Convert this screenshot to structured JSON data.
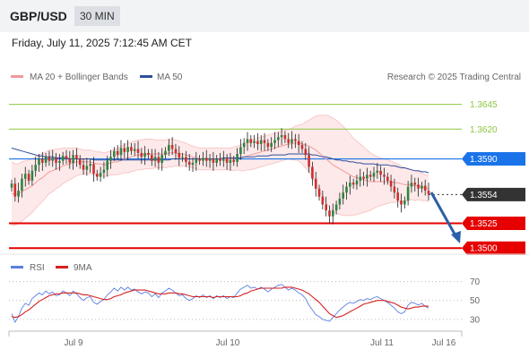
{
  "header": {
    "pair": "GBP/USD",
    "timeframe": "30 MIN",
    "datetime": "Friday, July 11, 2025 7:12:45 AM CET"
  },
  "legend": {
    "bb": "MA 20 + Bollinger Bands",
    "ma50": "MA 50",
    "rsi": "RSI",
    "rsi_ma": "9MA"
  },
  "credit": "Research © 2025 Trading Central",
  "colors": {
    "bb_line": "#f29a9a",
    "bb_fill": "#fde3e3",
    "ma50": "#2f4f9f",
    "resistance": "#8dc63f",
    "support": "#e60000",
    "tag_blue": "#1a73e8",
    "tag_dark": "#333333",
    "candle_up": "#2e8540",
    "candle_down": "#cc2f2f",
    "rsi": "#5b7fe0",
    "rsi_ma": "#d62020",
    "arrow": "#2b5fa8"
  },
  "chart_data": [
    {
      "type": "candlestick",
      "title": "",
      "xlabel": "",
      "ylabel": "",
      "x_ticks": [
        "Jul 9",
        "Jul 10",
        "Jul 11",
        "Jul 16"
      ],
      "ylim": [
        1.3493,
        1.366
      ],
      "levels": [
        {
          "value": 1.3645,
          "label": "1.3645",
          "kind": "resistance"
        },
        {
          "value": 1.362,
          "label": "1.3620",
          "kind": "resistance"
        },
        {
          "value": 1.359,
          "label": "1.3590",
          "kind": "pivot"
        },
        {
          "value": 1.3554,
          "label": "1.3554",
          "kind": "current"
        },
        {
          "value": 1.3525,
          "label": "1.3525",
          "kind": "support"
        },
        {
          "value": 1.35,
          "label": "1.3500",
          "kind": "support"
        }
      ],
      "close": [
        1.3565,
        1.3552,
        1.3558,
        1.357,
        1.3575,
        1.3568,
        1.3578,
        1.3584,
        1.359,
        1.3586,
        1.3592,
        1.3588,
        1.3591,
        1.3586,
        1.3588,
        1.3593,
        1.359,
        1.3586,
        1.3594,
        1.359,
        1.3584,
        1.3579,
        1.3583,
        1.3585,
        1.3575,
        1.3572,
        1.3576,
        1.3579,
        1.3588,
        1.3592,
        1.3598,
        1.3594,
        1.3601,
        1.3597,
        1.3602,
        1.3598,
        1.36,
        1.3596,
        1.3592,
        1.3596,
        1.3594,
        1.3588,
        1.3592,
        1.3586,
        1.3594,
        1.3598,
        1.3604,
        1.36,
        1.3596,
        1.3591,
        1.3592,
        1.3587,
        1.3584,
        1.3586,
        1.359,
        1.3588,
        1.3591,
        1.3588,
        1.359,
        1.3586,
        1.359,
        1.3588,
        1.359,
        1.3586,
        1.3589,
        1.3587,
        1.3595,
        1.3602,
        1.3606,
        1.361,
        1.3606,
        1.3608,
        1.3605,
        1.3609,
        1.3606,
        1.3602,
        1.3606,
        1.3609,
        1.3612,
        1.3614,
        1.361,
        1.3606,
        1.361,
        1.3608,
        1.3604,
        1.36,
        1.3594,
        1.3582,
        1.357,
        1.356,
        1.3552,
        1.3544,
        1.3538,
        1.3532,
        1.3538,
        1.3544,
        1.355,
        1.3556,
        1.3562,
        1.3566,
        1.3564,
        1.3568,
        1.3572,
        1.357,
        1.3574,
        1.3572,
        1.3576,
        1.3578,
        1.3574,
        1.3572,
        1.3568,
        1.3562,
        1.3556,
        1.3548,
        1.3544,
        1.3548,
        1.3562,
        1.3566,
        1.3564,
        1.356,
        1.3563,
        1.3558,
        1.3554
      ],
      "bb_mid": [
        1.3555,
        1.3554,
        1.3555,
        1.3557,
        1.3559,
        1.3561,
        1.3563,
        1.3566,
        1.3569,
        1.3571,
        1.3574,
        1.3577,
        1.3578,
        1.358,
        1.3581,
        1.3583,
        1.3584,
        1.3585,
        1.3586,
        1.3587,
        1.3587,
        1.3587,
        1.3587,
        1.3587,
        1.3586,
        1.3585,
        1.3585,
        1.3584,
        1.3585,
        1.3586,
        1.3587,
        1.3587,
        1.3589,
        1.359,
        1.3591,
        1.3592,
        1.3593,
        1.3594,
        1.3594,
        1.3595,
        1.3595,
        1.3595,
        1.3595,
        1.3595,
        1.3595,
        1.3595,
        1.3596,
        1.3596,
        1.3596,
        1.3595,
        1.3595,
        1.3594,
        1.3593,
        1.3592,
        1.3591,
        1.359,
        1.359,
        1.359,
        1.359,
        1.359,
        1.359,
        1.359,
        1.359,
        1.359,
        1.359,
        1.359,
        1.3591,
        1.3591,
        1.3592,
        1.3593,
        1.3594,
        1.3595,
        1.3596,
        1.3597,
        1.3598,
        1.3599,
        1.36,
        1.3601,
        1.3602,
        1.3603,
        1.3604,
        1.3605,
        1.3605,
        1.3606,
        1.3606,
        1.3605,
        1.3604,
        1.3603,
        1.3601,
        1.3599,
        1.3596,
        1.3593,
        1.359,
        1.3587,
        1.3584,
        1.3582,
        1.358,
        1.3578,
        1.3576,
        1.3574,
        1.3572,
        1.3571,
        1.357,
        1.3569,
        1.3568,
        1.3567,
        1.3567,
        1.3567,
        1.3567,
        1.3567,
        1.3567,
        1.3567,
        1.3566,
        1.3566,
        1.3565,
        1.3564,
        1.3564,
        1.3564,
        1.3563,
        1.3563,
        1.3562,
        1.3561,
        1.356
      ],
      "bb_width": [
        0.0032,
        0.0031,
        0.003,
        0.003,
        0.0029,
        0.0028,
        0.0027,
        0.0026,
        0.0025,
        0.0024,
        0.0023,
        0.0022,
        0.0021,
        0.002,
        0.0019,
        0.0018,
        0.0017,
        0.0016,
        0.0015,
        0.0014,
        0.0013,
        0.0012,
        0.0012,
        0.0012,
        0.0012,
        0.0012,
        0.0012,
        0.0012,
        0.0012,
        0.0012,
        0.0013,
        0.0013,
        0.0014,
        0.0014,
        0.0015,
        0.0015,
        0.0015,
        0.0015,
        0.0015,
        0.0015,
        0.0015,
        0.0015,
        0.0014,
        0.0014,
        0.0014,
        0.0014,
        0.0014,
        0.0014,
        0.0013,
        0.0013,
        0.0012,
        0.0012,
        0.0011,
        0.0011,
        0.0011,
        0.0011,
        0.0011,
        0.0011,
        0.0011,
        0.0011,
        0.0011,
        0.0011,
        0.0011,
        0.0011,
        0.0011,
        0.0012,
        0.0012,
        0.0013,
        0.0014,
        0.0014,
        0.0015,
        0.0015,
        0.0015,
        0.0015,
        0.0015,
        0.0015,
        0.0015,
        0.0015,
        0.0015,
        0.0015,
        0.0015,
        0.0015,
        0.0016,
        0.0017,
        0.0018,
        0.002,
        0.0023,
        0.0026,
        0.003,
        0.0034,
        0.0038,
        0.0041,
        0.0044,
        0.0046,
        0.0047,
        0.0047,
        0.0046,
        0.0045,
        0.0043,
        0.0041,
        0.0039,
        0.0037,
        0.0035,
        0.0033,
        0.0031,
        0.0029,
        0.0027,
        0.0025,
        0.0024,
        0.0023,
        0.0022,
        0.0021,
        0.002,
        0.0019,
        0.0018,
        0.0017,
        0.0016,
        0.0015,
        0.0015,
        0.0014,
        0.0014,
        0.0013,
        0.0013
      ],
      "ma50": [
        1.3601,
        1.36,
        1.3599,
        1.3598,
        1.3597,
        1.3596,
        1.3595,
        1.3594,
        1.3593,
        1.3593,
        1.3592,
        1.3592,
        1.3592,
        1.3591,
        1.3591,
        1.3591,
        1.3591,
        1.359,
        1.359,
        1.359,
        1.359,
        1.359,
        1.359,
        1.359,
        1.3589,
        1.3589,
        1.3589,
        1.3589,
        1.3589,
        1.3589,
        1.3589,
        1.3589,
        1.3589,
        1.3589,
        1.3589,
        1.3589,
        1.3589,
        1.3589,
        1.3589,
        1.3589,
        1.3589,
        1.3589,
        1.3589,
        1.3589,
        1.3589,
        1.3589,
        1.3589,
        1.359,
        1.359,
        1.359,
        1.359,
        1.359,
        1.359,
        1.359,
        1.359,
        1.359,
        1.359,
        1.359,
        1.359,
        1.359,
        1.359,
        1.359,
        1.3591,
        1.3591,
        1.3591,
        1.3591,
        1.3591,
        1.3591,
        1.3592,
        1.3592,
        1.3592,
        1.3592,
        1.3593,
        1.3593,
        1.3593,
        1.3593,
        1.3594,
        1.3594,
        1.3594,
        1.3594,
        1.3594,
        1.3595,
        1.3595,
        1.3595,
        1.3595,
        1.3595,
        1.3595,
        1.3595,
        1.3594,
        1.3594,
        1.3593,
        1.3592,
        1.3592,
        1.3591,
        1.359,
        1.3589,
        1.3589,
        1.3588,
        1.3588,
        1.3587,
        1.3587,
        1.3586,
        1.3586,
        1.3585,
        1.3585,
        1.3585,
        1.3585,
        1.3584,
        1.3584,
        1.3584,
        1.3584,
        1.3583,
        1.3583,
        1.3582,
        1.3581,
        1.3581,
        1.358,
        1.3579,
        1.3578,
        1.3578,
        1.3577,
        1.3577,
        1.3576
      ]
    },
    {
      "type": "line",
      "title": "",
      "x_ticks": [
        "Jul 9",
        "Jul 10",
        "Jul 11",
        "Jul 16"
      ],
      "y_ticks": [
        70,
        50,
        30
      ],
      "ylim": [
        10,
        80
      ],
      "series": [
        {
          "name": "RSI",
          "values": [
            36,
            27,
            33,
            42,
            47,
            45,
            52,
            55,
            58,
            56,
            60,
            57,
            59,
            55,
            56,
            60,
            58,
            55,
            60,
            57,
            53,
            50,
            53,
            54,
            48,
            46,
            49,
            51,
            56,
            59,
            63,
            60,
            64,
            61,
            64,
            61,
            62,
            59,
            57,
            59,
            58,
            54,
            57,
            53,
            58,
            60,
            63,
            61,
            58,
            55,
            56,
            52,
            50,
            52,
            55,
            53,
            56,
            53,
            55,
            52,
            55,
            53,
            55,
            52,
            54,
            53,
            58,
            62,
            64,
            66,
            63,
            64,
            62,
            64,
            62,
            59,
            62,
            64,
            66,
            67,
            64,
            61,
            63,
            61,
            58,
            56,
            52,
            45,
            40,
            35,
            33,
            30,
            29,
            28,
            32,
            36,
            40,
            43,
            46,
            48,
            47,
            49,
            51,
            50,
            52,
            51,
            53,
            54,
            52,
            50,
            48,
            45,
            42,
            38,
            36,
            38,
            45,
            48,
            47,
            45,
            47,
            44,
            42
          ]
        },
        {
          "name": "9MA",
          "values": [
            33,
            32,
            33,
            35,
            38,
            40,
            43,
            46,
            49,
            51,
            53,
            55,
            56,
            57,
            57,
            58,
            58,
            58,
            58,
            58,
            57,
            56,
            56,
            55,
            54,
            53,
            52,
            51,
            51,
            52,
            54,
            55,
            56,
            58,
            59,
            60,
            61,
            61,
            61,
            61,
            60,
            59,
            58,
            57,
            57,
            57,
            58,
            58,
            58,
            57,
            57,
            56,
            55,
            54,
            54,
            54,
            54,
            54,
            54,
            53,
            54,
            54,
            54,
            54,
            54,
            54,
            54,
            55,
            57,
            58,
            60,
            61,
            62,
            63,
            63,
            63,
            63,
            63,
            63,
            63,
            64,
            64,
            64,
            63,
            62,
            61,
            59,
            57,
            54,
            51,
            48,
            44,
            40,
            36,
            34,
            32,
            33,
            34,
            36,
            38,
            40,
            42,
            44,
            46,
            47,
            48,
            49,
            50,
            50,
            50,
            49,
            48,
            47,
            45,
            43,
            42,
            41,
            42,
            43,
            43,
            44,
            44,
            44
          ]
        }
      ]
    }
  ]
}
